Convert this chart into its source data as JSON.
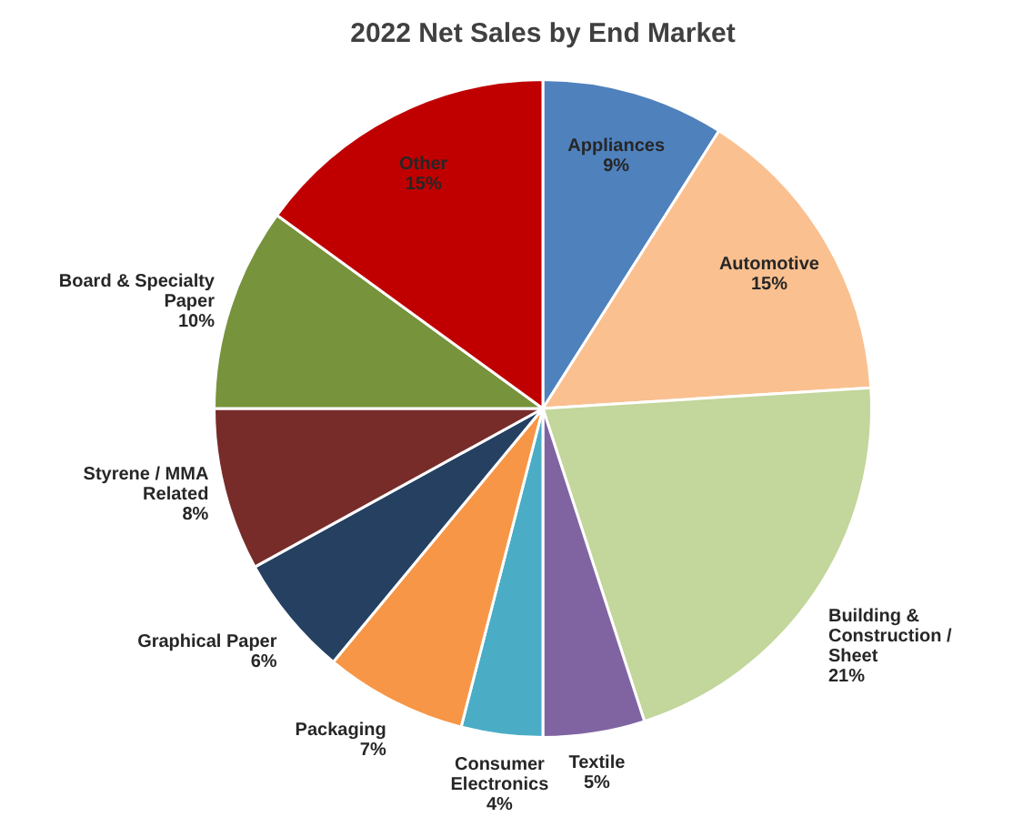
{
  "chart_data": {
    "type": "pie",
    "title": "2022 Net Sales by End Market",
    "categories": [
      "Appliances",
      "Automotive",
      "Building & Construction / Sheet",
      "Textile",
      "Consumer Electronics",
      "Packaging",
      "Graphical Paper",
      "Styrene / MMA Related",
      "Board & Specialty Paper",
      "Other"
    ],
    "values": [
      9,
      15,
      21,
      5,
      4,
      7,
      6,
      8,
      10,
      15
    ],
    "value_labels": [
      "9%",
      "15%",
      "21%",
      "5%",
      "4%",
      "7%",
      "6%",
      "8%",
      "10%",
      "15%"
    ],
    "colors": [
      "#4f81bd",
      "#fac090",
      "#c3d69b",
      "#8064a2",
      "#4bacc6",
      "#f79646",
      "#254061",
      "#772c2a",
      "#77933c",
      "#c00000"
    ],
    "legend": false
  }
}
